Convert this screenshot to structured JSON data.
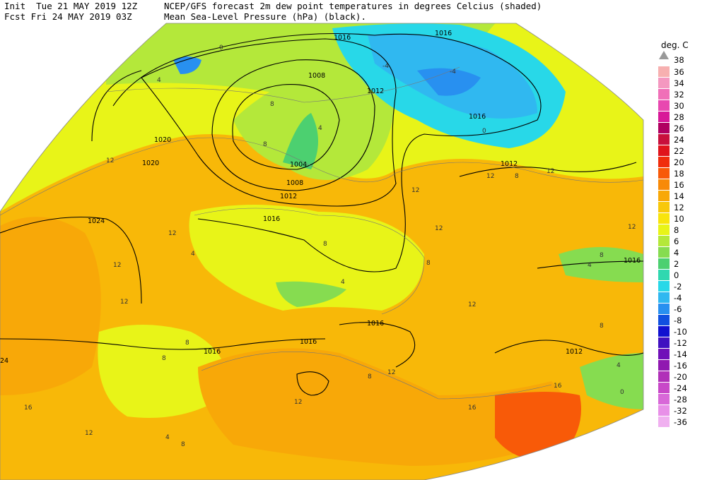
{
  "header": {
    "init": "Init  Tue 21 MAY 2019 12Z",
    "fcst": "Fcst Fri 24 MAY 2019 03Z",
    "title": "NCEP/GFS forecast 2m dew point temperatures in degrees Celcius (shaded)",
    "subtitle": "Mean Sea-Level Pressure (hPa) (black)."
  },
  "legend": {
    "unit": "deg. C",
    "top_label": "38",
    "top_color": "#999999",
    "entries": [
      {
        "label": "36",
        "color": "#f7b0b0"
      },
      {
        "label": "34",
        "color": "#f498c0"
      },
      {
        "label": "32",
        "color": "#f070b8"
      },
      {
        "label": "30",
        "color": "#e848b0"
      },
      {
        "label": "28",
        "color": "#d81898"
      },
      {
        "label": "26",
        "color": "#b00060"
      },
      {
        "label": "24",
        "color": "#c8103c"
      },
      {
        "label": "22",
        "color": "#e0141c"
      },
      {
        "label": "20",
        "color": "#f02c0c"
      },
      {
        "label": "18",
        "color": "#f85a08"
      },
      {
        "label": "16",
        "color": "#f88a08"
      },
      {
        "label": "14",
        "color": "#f8a808"
      },
      {
        "label": "12",
        "color": "#f8c80a"
      },
      {
        "label": "10",
        "color": "#f8e40c"
      },
      {
        "label": "8",
        "color": "#e8f418"
      },
      {
        "label": "6",
        "color": "#b4e83a"
      },
      {
        "label": "4",
        "color": "#86dc50"
      },
      {
        "label": "2",
        "color": "#4cd070"
      },
      {
        "label": "0",
        "color": "#30d8b0"
      },
      {
        "label": "-2",
        "color": "#28d8e8"
      },
      {
        "label": "-4",
        "color": "#30b8f0"
      },
      {
        "label": "-6",
        "color": "#2890f0"
      },
      {
        "label": "-8",
        "color": "#1050e0"
      },
      {
        "label": "-10",
        "color": "#1010d0"
      },
      {
        "label": "-12",
        "color": "#4010c0"
      },
      {
        "label": "-14",
        "color": "#7010b8"
      },
      {
        "label": "-16",
        "color": "#9018b0"
      },
      {
        "label": "-20",
        "color": "#b030b8"
      },
      {
        "label": "-24",
        "color": "#c848c8"
      },
      {
        "label": "-28",
        "color": "#d868d8"
      },
      {
        "label": "-32",
        "color": "#e890e8"
      },
      {
        "label": "-36",
        "color": "#f0b0f0"
      }
    ]
  },
  "map": {
    "isobar_labels": [
      {
        "text": "1016"
      },
      {
        "text": "1008"
      },
      {
        "text": "1012"
      },
      {
        "text": "1016"
      },
      {
        "text": "1012"
      },
      {
        "text": "1020"
      },
      {
        "text": "1020"
      },
      {
        "text": "1004"
      },
      {
        "text": "1008"
      },
      {
        "text": "1012"
      },
      {
        "text": "1024"
      },
      {
        "text": "1016"
      },
      {
        "text": "1016"
      },
      {
        "text": "1016"
      },
      {
        "text": "1016"
      },
      {
        "text": "1016"
      },
      {
        "text": "1012"
      },
      {
        "text": "1016"
      },
      {
        "text": "24"
      }
    ],
    "dewpoint_labels": [
      {
        "text": "0"
      },
      {
        "text": "4"
      },
      {
        "text": "-4"
      },
      {
        "text": "-4"
      },
      {
        "text": "8"
      },
      {
        "text": "4"
      },
      {
        "text": "0"
      },
      {
        "text": "12"
      },
      {
        "text": "8"
      },
      {
        "text": "12"
      },
      {
        "text": "12"
      },
      {
        "text": "12"
      },
      {
        "text": "12"
      },
      {
        "text": "8"
      },
      {
        "text": "12"
      },
      {
        "text": "12"
      },
      {
        "text": "4"
      },
      {
        "text": "8"
      },
      {
        "text": "12"
      },
      {
        "text": "8"
      },
      {
        "text": "8"
      },
      {
        "text": "4"
      },
      {
        "text": "12"
      },
      {
        "text": "8"
      },
      {
        "text": "12"
      },
      {
        "text": "12"
      },
      {
        "text": "16"
      },
      {
        "text": "16"
      },
      {
        "text": "8"
      },
      {
        "text": "4"
      },
      {
        "text": "4"
      },
      {
        "text": "0"
      },
      {
        "text": "8"
      },
      {
        "text": "12"
      },
      {
        "text": "8"
      },
      {
        "text": "12"
      },
      {
        "text": "16"
      },
      {
        "text": "8"
      },
      {
        "text": "4"
      }
    ]
  }
}
